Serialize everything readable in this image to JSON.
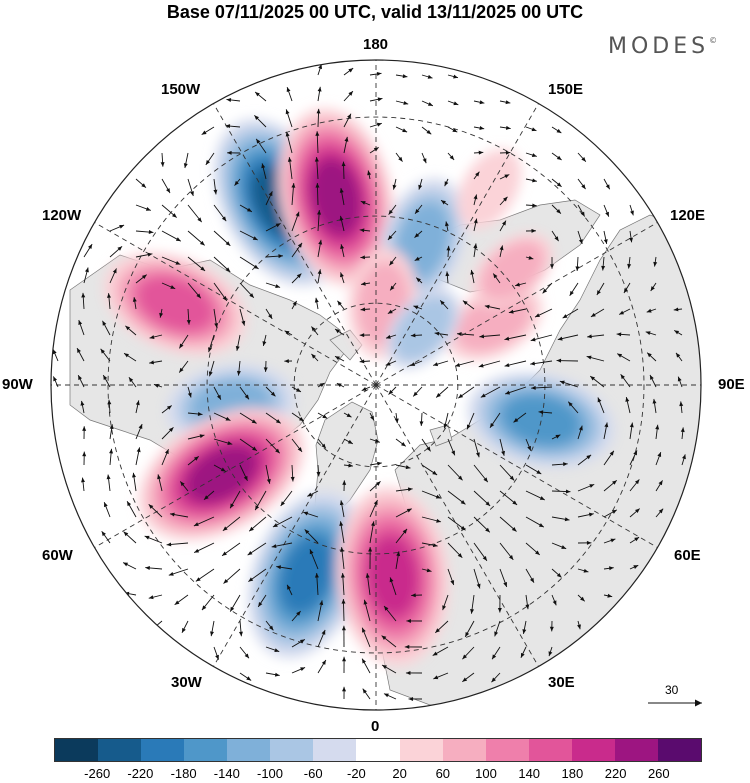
{
  "title": "Base 07/11/2025 00 UTC, valid 13/11/2025 00 UTC",
  "brand": "MODES",
  "brand_mark": "©",
  "projection": "north-polar-stereographic",
  "longitude_labels": {
    "n180": "180",
    "w150": "150W",
    "e150": "150E",
    "w120": "120W",
    "e120": "120E",
    "w90": "90W",
    "e90": "90E",
    "w60": "60W",
    "e60": "60E",
    "w30": "30W",
    "e30": "30E",
    "s0": "0"
  },
  "reference_vector": {
    "value": "30"
  },
  "colorbar": {
    "colors": [
      "#0b3a5c",
      "#165b8c",
      "#2a7ab8",
      "#4f97c9",
      "#7fb0d9",
      "#aac6e4",
      "#d5dbee",
      "#ffffff",
      "#fbd3d8",
      "#f6aec0",
      "#ef7fab",
      "#e2559a",
      "#c92b8c",
      "#9d1581",
      "#5a0b6e"
    ],
    "ticks": [
      "-260",
      "-220",
      "-180",
      "-140",
      "-100",
      "-60",
      "-20",
      "20",
      "60",
      "100",
      "140",
      "180",
      "220",
      "260"
    ]
  },
  "anomaly_centers": [
    {
      "lon": -152,
      "lat": 42,
      "value": -240
    },
    {
      "lon": -168,
      "lat": 45,
      "value": 230
    },
    {
      "lon": 162,
      "lat": 54,
      "value": -120
    },
    {
      "lon": -112,
      "lat": 40,
      "value": 150
    },
    {
      "lon": -82,
      "lat": 55,
      "value": -120
    },
    {
      "lon": -60,
      "lat": 48,
      "value": 230
    },
    {
      "lon": -20,
      "lat": 43,
      "value": -190
    },
    {
      "lon": 5,
      "lat": 45,
      "value": 200
    },
    {
      "lon": 78,
      "lat": 50,
      "value": -150
    },
    {
      "lon": 118,
      "lat": 58,
      "value": 80
    },
    {
      "lon": 130,
      "lat": 48,
      "value": 60
    },
    {
      "lon": 175,
      "lat": 70,
      "value": 90
    },
    {
      "lon": 140,
      "lat": 72,
      "value": -60
    },
    {
      "lon": 150,
      "lat": 38,
      "value": 50
    }
  ]
}
